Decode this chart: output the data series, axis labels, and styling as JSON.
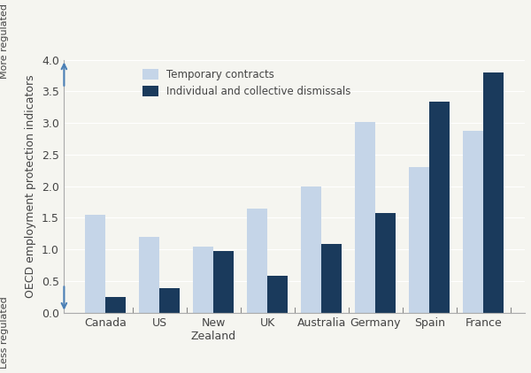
{
  "categories": [
    "Canada",
    "US",
    "New\nZealand",
    "UK",
    "Australia",
    "Germany",
    "Spain",
    "France"
  ],
  "temporary_contracts": [
    1.55,
    1.2,
    1.05,
    1.65,
    2.0,
    3.02,
    2.3,
    2.88
  ],
  "individual_collective": [
    0.25,
    0.38,
    0.98,
    0.58,
    1.08,
    1.58,
    3.33,
    3.8
  ],
  "color_temporary": "#c5d5e8",
  "color_individual": "#1a3a5c",
  "ylabel": "OECD employment protection indicators",
  "legend_temporary": "Temporary contracts",
  "legend_individual": "Individual and collective dismissals",
  "ylim": [
    0,
    4.0
  ],
  "yticks": [
    0.0,
    0.5,
    1.0,
    1.5,
    2.0,
    2.5,
    3.0,
    3.5,
    4.0
  ],
  "more_regulated_label": "More regulated",
  "less_regulated_label": "Less regulated",
  "bar_width": 0.38,
  "background_color": "#f5f5f0"
}
